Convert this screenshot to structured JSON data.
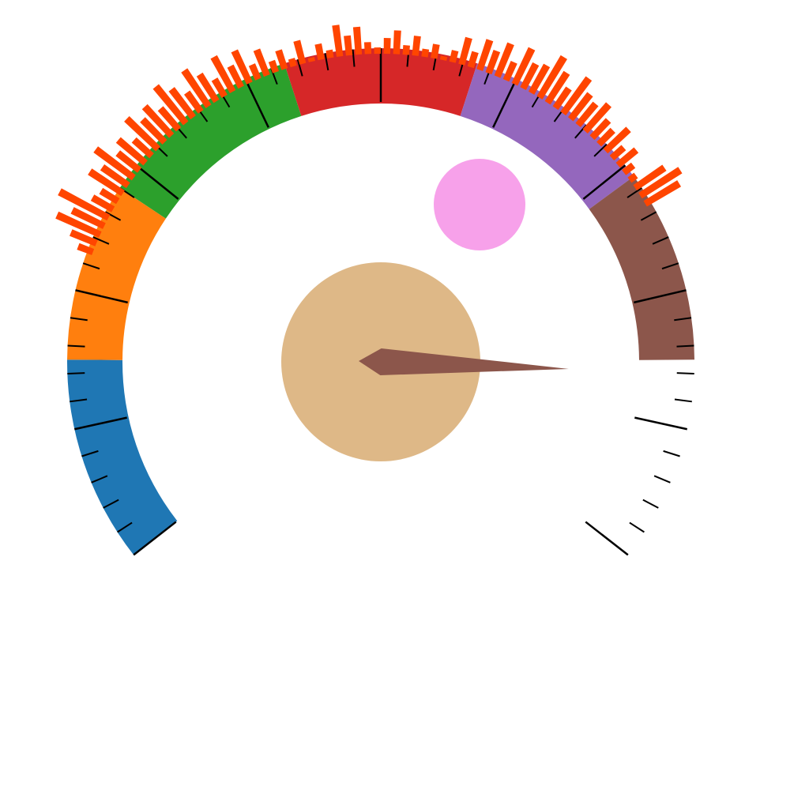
{
  "chart_data": {
    "type": "gauge",
    "range": [
      0,
      100
    ],
    "ticks": [
      0,
      2,
      4,
      6,
      8,
      10,
      12,
      14,
      16,
      18,
      20,
      22,
      24,
      26,
      28,
      30,
      32,
      34,
      36,
      38,
      40,
      42,
      44,
      46,
      48,
      50,
      52,
      54,
      56,
      58,
      60,
      62,
      64,
      66,
      68,
      70,
      72,
      74,
      76,
      78,
      80,
      82,
      84,
      86,
      88,
      90,
      92,
      94,
      96,
      98,
      100
    ],
    "major_ticks": [
      0,
      10,
      20,
      30,
      40,
      50,
      60,
      70,
      80,
      90,
      100
    ],
    "segments": [
      {
        "color": "#1f77b4",
        "from": 0,
        "to": 15
      },
      {
        "color": "#ff7f0e",
        "from": 15,
        "to": 28
      },
      {
        "color": "#2ca02c",
        "from": 28,
        "to": 43
      },
      {
        "color": "#d62728",
        "from": 43,
        "to": 57
      },
      {
        "color": "#9467bd",
        "from": 57,
        "to": 71
      },
      {
        "color": "#8c564b",
        "from": 71,
        "to": 85
      }
    ],
    "needle": 86,
    "needle_color": "#8c564b",
    "bars": {
      "color": "#ff4500",
      "rlim": [
        0,
        100
      ],
      "values": [
        20,
        35,
        60,
        45,
        70,
        30,
        25,
        50,
        40,
        60,
        35,
        45,
        30,
        55,
        40,
        50,
        35,
        60,
        45,
        30,
        55,
        40,
        25,
        50,
        30,
        45,
        20,
        35,
        15,
        25,
        10,
        30,
        5,
        20,
        10,
        40,
        25,
        35,
        15,
        8,
        20,
        30,
        12,
        25,
        10,
        18,
        5,
        15,
        35,
        20,
        40,
        30,
        45,
        25,
        50,
        35,
        40,
        60,
        45,
        30,
        55,
        40,
        35,
        45,
        30,
        25,
        40,
        20,
        30,
        15,
        10,
        45,
        60,
        50
      ]
    }
  }
}
